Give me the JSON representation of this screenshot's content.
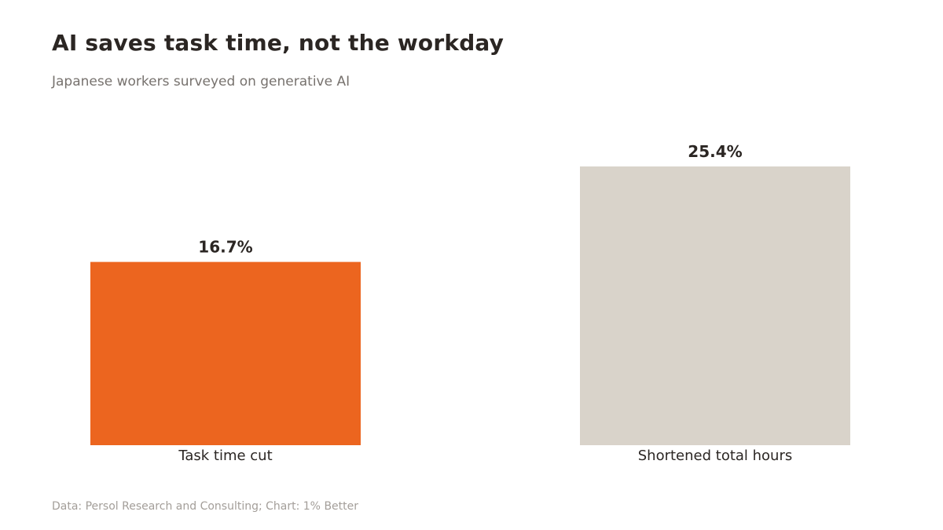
{
  "header": {
    "title": "AI saves task time, not the workday",
    "subtitle": "Japanese workers surveyed on generative AI"
  },
  "footer": {
    "source": "Data: Persol Research and Consulting; Chart: 1% Better"
  },
  "chart_data": {
    "type": "bar",
    "categories": [
      "Task time cut",
      "Shortened total hours"
    ],
    "values": [
      16.7,
      25.4
    ],
    "value_labels": [
      "16.7%",
      "25.4%"
    ],
    "colors": [
      "#ec651f",
      "#d9d3ca"
    ],
    "ylim": [
      0,
      25.4
    ],
    "grid": false,
    "legend": "none"
  }
}
